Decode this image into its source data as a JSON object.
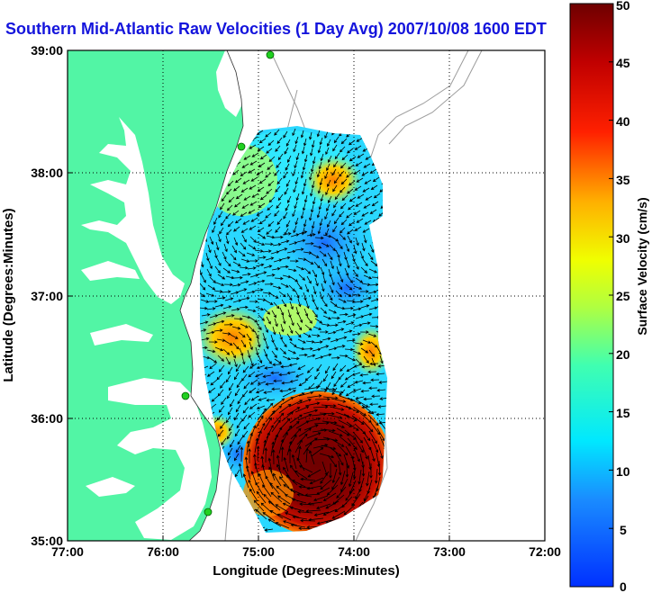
{
  "title": "Southern Mid-Atlantic Raw Velocities (1 Day Avg) 2007/10/08 1600 EDT",
  "axes": {
    "xlabel": "Longitude (Degrees:Minutes)",
    "ylabel": "Latitude (Degrees:Minutes)",
    "x_ticks": [
      "77:00",
      "76:00",
      "75:00",
      "74:00",
      "73:00",
      "72:00"
    ],
    "y_ticks": [
      "39:00",
      "38:00",
      "37:00",
      "36:00",
      "35:00"
    ]
  },
  "colorbar": {
    "label": "Surface Velocity (cm/s)",
    "ticks": [
      "50",
      "45",
      "40",
      "35",
      "30",
      "25",
      "20",
      "15",
      "10",
      "5",
      "0"
    ],
    "range": [
      0,
      50
    ]
  },
  "colors": {
    "land": "#52f5a5",
    "grid": "#000000",
    "bathymetry": "#9c9c9c",
    "title": "#1414dc",
    "station": "#20d020"
  }
}
